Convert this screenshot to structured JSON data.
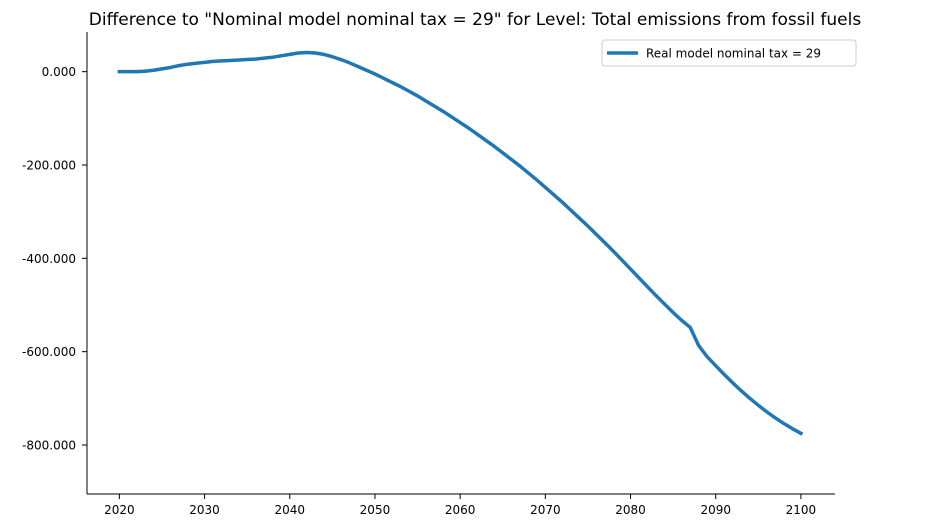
{
  "chart_data": {
    "type": "line",
    "title": "Difference to \"Nominal model nominal tax = 29\" for Level: Total emissions from fossil fuels",
    "xlabel": "",
    "ylabel": "",
    "xlim": [
      2016.2,
      2104
    ],
    "ylim": [
      -905,
      85
    ],
    "x_ticks": [
      2020,
      2030,
      2040,
      2050,
      2060,
      2070,
      2080,
      2090,
      2100
    ],
    "y_ticks": [
      0,
      -200,
      -400,
      -600,
      -800
    ],
    "y_tick_labels": [
      "0.000",
      "-200.000",
      "-400.000",
      "-600.000",
      "-800.000"
    ],
    "grid": false,
    "legend_position": "top-right",
    "colors": {
      "series": "#1f77b4",
      "axis": "#000000"
    },
    "series": [
      {
        "name": "Real model nominal tax = 29",
        "x": [
          2020,
          2021,
          2022,
          2023,
          2024,
          2025,
          2026,
          2027,
          2028,
          2029,
          2030,
          2031,
          2032,
          2033,
          2034,
          2035,
          2036,
          2037,
          2038,
          2039,
          2040,
          2041,
          2042,
          2043,
          2044,
          2045,
          2046,
          2047,
          2048,
          2049,
          2050,
          2051,
          2052,
          2053,
          2054,
          2055,
          2056,
          2057,
          2058,
          2059,
          2060,
          2061,
          2062,
          2063,
          2064,
          2065,
          2066,
          2067,
          2068,
          2069,
          2070,
          2071,
          2072,
          2073,
          2074,
          2075,
          2076,
          2077,
          2078,
          2079,
          2080,
          2081,
          2082,
          2083,
          2084,
          2085,
          2086,
          2087,
          2088,
          2089,
          2090,
          2091,
          2092,
          2093,
          2094,
          2095,
          2096,
          2097,
          2098,
          2099,
          2100
        ],
        "values": [
          0,
          0,
          0,
          1,
          3,
          6,
          9,
          13,
          16,
          18,
          20,
          22,
          23,
          24,
          25,
          26,
          27,
          29,
          31,
          34,
          37,
          40,
          41,
          40,
          37,
          32,
          26,
          19,
          11,
          3,
          -5,
          -14,
          -23,
          -32,
          -42,
          -52,
          -63,
          -74,
          -85,
          -97,
          -109,
          -121,
          -134,
          -147,
          -160,
          -174,
          -188,
          -202,
          -217,
          -232,
          -248,
          -264,
          -280,
          -297,
          -314,
          -331,
          -349,
          -367,
          -385,
          -404,
          -423,
          -442,
          -461,
          -480,
          -498,
          -516,
          -533,
          -548,
          -587,
          -611,
          -630,
          -649,
          -667,
          -684,
          -700,
          -715,
          -729,
          -742,
          -754,
          -765,
          -775
        ]
      }
    ]
  }
}
